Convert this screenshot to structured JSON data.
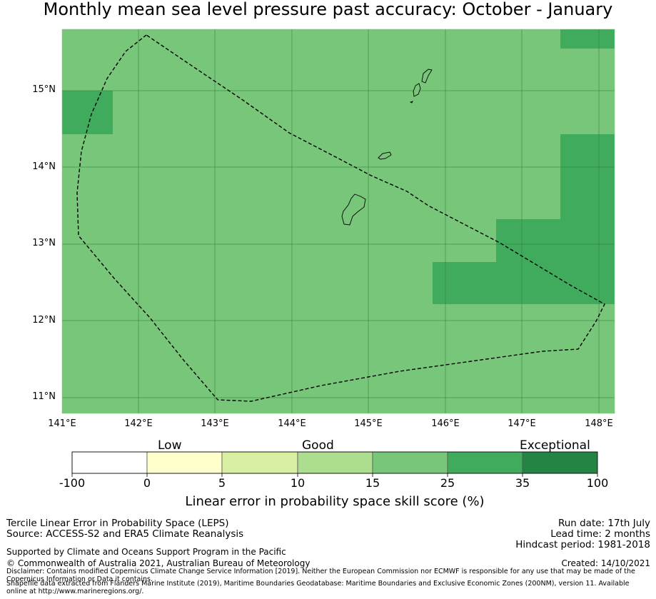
{
  "title": "Monthly mean sea level pressure past accuracy: October - January",
  "map": {
    "lat_labels": [
      "15°N",
      "14°N",
      "13°N",
      "12°N",
      "11°N"
    ],
    "lon_labels": [
      "141°E",
      "142°E",
      "143°E",
      "144°E",
      "145°E",
      "146°E",
      "147°E",
      "148°E"
    ],
    "background_color": "#78c679",
    "higher_skill_color": "#41ab5d"
  },
  "colorbar": {
    "categories": [
      "Low",
      "Good",
      "Exceptional"
    ],
    "ticks": [
      "-100",
      "0",
      "5",
      "10",
      "15",
      "25",
      "35",
      "100"
    ],
    "colors": [
      "#ffffff",
      "#ffffcc",
      "#d9f0a3",
      "#addd8e",
      "#78c679",
      "#41ab5d",
      "#238443"
    ],
    "label": "Linear error in probability space skill score (%)"
  },
  "footer": {
    "left_line1": "Tercile Linear Error in Probability Space (LEPS)",
    "left_line2": "Source: ACCESS-S2 and ERA5 Climate Reanalysis",
    "support": "Supported by Climate and Oceans Support Program in the Pacific",
    "copyright": "© Commonwealth of Australia 2021, Australian Bureau of Meteorology",
    "run_date": "Run date: 17th July",
    "lead_time": "Lead time: 2 months",
    "hindcast": "Hindcast period: 1981-2018",
    "created": "Created: 14/10/2021",
    "disclaimer": "Disclaimer: Contains modified Copernicus Climate Change Service Information [2019]. Neither the European Commission nor ECMWF is responsible for any use that may be made of the Copernicus Information or Data it contains.",
    "shapefile": "Shapefile data extracted from Flanders Marine Institute (2019), Maritime Boundaries Geodatabase: Maritime Boundaries and Exclusive Economic Zones (200NM), version 11. Available online at http://www.marineregions.org/."
  }
}
